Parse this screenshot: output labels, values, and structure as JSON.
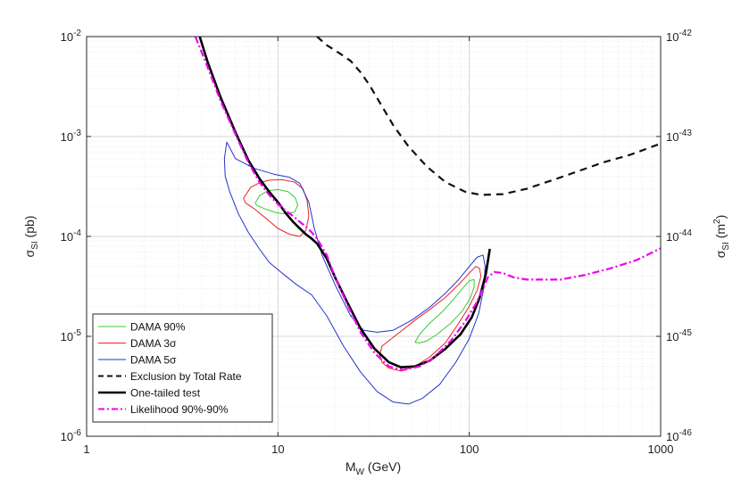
{
  "chart_data": {
    "type": "line",
    "xscale": "log",
    "yscale": "log",
    "xlim": [
      1,
      1000
    ],
    "ylim": [
      1e-06,
      0.01
    ],
    "y2lim": [
      1e-46,
      1e-42
    ],
    "xlabel": {
      "main": "M",
      "sub": "W",
      "rest": " (GeV)"
    },
    "ylabel": {
      "main": "σ",
      "sub": "SI",
      "rest": " (pb)"
    },
    "y2label": {
      "main": "σ",
      "sub": "SI",
      "rest": " (m",
      "sup": "2",
      "close": ")"
    },
    "xticks": [
      {
        "value": 1,
        "label": "1"
      },
      {
        "value": 10,
        "label": "10"
      },
      {
        "value": 100,
        "label": "100"
      },
      {
        "value": 1000,
        "label": "1000"
      }
    ],
    "yticks": [
      {
        "value": 0.01,
        "base": "10",
        "exp": "-2"
      },
      {
        "value": 0.001,
        "base": "10",
        "exp": "-3"
      },
      {
        "value": 0.0001,
        "base": "10",
        "exp": "-4"
      },
      {
        "value": 1e-05,
        "base": "10",
        "exp": "-5"
      },
      {
        "value": 1e-06,
        "base": "10",
        "exp": "-6"
      }
    ],
    "y2ticks": [
      {
        "value": 1e-42,
        "base": "10",
        "exp": "-42"
      },
      {
        "value": 1e-43,
        "base": "10",
        "exp": "-43"
      },
      {
        "value": 1e-44,
        "base": "10",
        "exp": "-44"
      },
      {
        "value": 1e-45,
        "base": "10",
        "exp": "-45"
      },
      {
        "value": 1e-46,
        "base": "10",
        "exp": "-46"
      }
    ],
    "grid": true,
    "legend_position": "bottom-left",
    "series": [
      {
        "name": "DAMA 90%",
        "style": "contour",
        "color": "#33cc33",
        "dash": "",
        "points": [
          [
            7.6,
            0.000215
          ],
          [
            8.0,
            0.000255
          ],
          [
            8.8,
            0.000285
          ],
          [
            10.0,
            0.000295
          ],
          [
            11.3,
            0.00028
          ],
          [
            12.3,
            0.000245
          ],
          [
            12.7,
            0.000205
          ],
          [
            12.2,
            0.000175
          ],
          [
            11.0,
            0.000168
          ],
          [
            9.8,
            0.000173
          ],
          [
            8.6,
            0.000188
          ],
          [
            7.8,
            0.000203
          ],
          [
            7.6,
            0.000215
          ]
        ]
      },
      {
        "name": "DAMA 90%",
        "style": "contour",
        "color": "#33cc33",
        "dash": "",
        "points": [
          [
            52,
            8.7e-06
          ],
          [
            55,
            1.05e-05
          ],
          [
            62,
            1.35e-05
          ],
          [
            72,
            1.75e-05
          ],
          [
            82,
            2.3e-05
          ],
          [
            92,
            3e-05
          ],
          [
            100,
            3.6e-05
          ],
          [
            106,
            3.7e-05
          ],
          [
            106,
            3.1e-05
          ],
          [
            101,
            2.4e-05
          ],
          [
            92,
            1.8e-05
          ],
          [
            80,
            1.35e-05
          ],
          [
            68,
            1.05e-05
          ],
          [
            60,
            9e-06
          ],
          [
            55,
            8.6e-06
          ],
          [
            52,
            8.7e-06
          ]
        ]
      },
      {
        "name": "DAMA 3σ",
        "style": "contour",
        "color": "#ee2222",
        "dash": "",
        "points": [
          [
            6.6,
            0.00024
          ],
          [
            7.2,
            0.00031
          ],
          [
            8.0,
            0.000345
          ],
          [
            9.0,
            0.000365
          ],
          [
            10.5,
            0.00037
          ],
          [
            12.2,
            0.00035
          ],
          [
            13.5,
            0.0003
          ],
          [
            14.2,
            0.00023
          ],
          [
            14.5,
            0.00016
          ],
          [
            14.0,
            0.000115
          ],
          [
            13.0,
            0.0001
          ],
          [
            11.5,
            0.000105
          ],
          [
            10.0,
            0.00012
          ],
          [
            8.8,
            0.000148
          ],
          [
            7.5,
            0.00019
          ],
          [
            6.8,
            0.000215
          ],
          [
            6.6,
            0.00024
          ]
        ]
      },
      {
        "name": "DAMA 3σ",
        "style": "contour",
        "color": "#ee2222",
        "dash": "",
        "points": [
          [
            34,
            6.5e-06
          ],
          [
            35,
            8e-06
          ],
          [
            42,
            1.05e-05
          ],
          [
            52,
            1.45e-05
          ],
          [
            62,
            1.85e-05
          ],
          [
            75,
            2.45e-05
          ],
          [
            88,
            3.3e-05
          ],
          [
            100,
            4.3e-05
          ],
          [
            108,
            5e-05
          ],
          [
            113,
            4.8e-05
          ],
          [
            115,
            4e-05
          ],
          [
            110,
            2.9e-05
          ],
          [
            100,
            2e-05
          ],
          [
            88,
            1.35e-05
          ],
          [
            75,
            8.6e-06
          ],
          [
            62,
            6.2e-06
          ],
          [
            52,
            5e-06
          ],
          [
            44,
            4.5e-06
          ],
          [
            38,
            4.8e-06
          ],
          [
            35,
            5.5e-06
          ],
          [
            34,
            6.5e-06
          ]
        ]
      },
      {
        "name": "DAMA 5σ",
        "style": "contour",
        "color": "#2233cc",
        "dash": "",
        "points": [
          [
            5.4,
            0.00088
          ],
          [
            6.0,
            0.0006
          ],
          [
            7.5,
            0.00048
          ],
          [
            9.5,
            0.00042
          ],
          [
            11.5,
            0.00039
          ],
          [
            13,
            0.00034
          ],
          [
            14.5,
            0.00022
          ],
          [
            15.5,
            0.00012
          ],
          [
            17,
            6.5e-05
          ],
          [
            20,
            3.2e-05
          ],
          [
            24,
            1.6e-05
          ],
          [
            28,
            1.15e-05
          ],
          [
            33,
            1.1e-05
          ],
          [
            40,
            1.15e-05
          ],
          [
            50,
            1.45e-05
          ],
          [
            62,
            1.95e-05
          ],
          [
            75,
            2.7e-05
          ],
          [
            88,
            3.7e-05
          ],
          [
            100,
            5e-05
          ],
          [
            110,
            6.2e-05
          ],
          [
            118,
            6.5e-05
          ],
          [
            121,
            5e-05
          ],
          [
            119,
            3e-05
          ],
          [
            112,
            1.7e-05
          ],
          [
            100,
            9.5e-06
          ],
          [
            85,
            5.5e-06
          ],
          [
            70,
            3.3e-06
          ],
          [
            57,
            2.4e-06
          ],
          [
            48,
            2.1e-06
          ],
          [
            40,
            2.2e-06
          ],
          [
            33,
            2.8e-06
          ],
          [
            27,
            4.4e-06
          ],
          [
            22,
            8e-06
          ],
          [
            18,
            1.6e-05
          ],
          [
            15,
            2.6e-05
          ],
          [
            12.5,
            3.3e-05
          ],
          [
            10.5,
            4.3e-05
          ],
          [
            9.0,
            5.5e-05
          ],
          [
            8.0,
            7.5e-05
          ],
          [
            7.0,
            0.00011
          ],
          [
            6.2,
            0.00017
          ],
          [
            5.6,
            0.00028
          ],
          [
            5.3,
            0.0004
          ],
          [
            5.25,
            0.0006
          ],
          [
            5.4,
            0.00088
          ]
        ]
      },
      {
        "name": "Exclusion by Total Rate",
        "style": "line",
        "color": "#111111",
        "dash": "8,6",
        "points": [
          [
            16,
            0.01
          ],
          [
            18,
            0.0082
          ],
          [
            21,
            0.0068
          ],
          [
            24,
            0.0057
          ],
          [
            27,
            0.0044
          ],
          [
            30,
            0.0033
          ],
          [
            34,
            0.0022
          ],
          [
            40,
            0.0013
          ],
          [
            48,
            0.0008
          ],
          [
            60,
            0.0005
          ],
          [
            75,
            0.00035
          ],
          [
            95,
            0.00028
          ],
          [
            115,
            0.00026
          ],
          [
            150,
            0.000265
          ],
          [
            200,
            0.0003
          ],
          [
            300,
            0.00039
          ],
          [
            500,
            0.00055
          ],
          [
            700,
            0.00066
          ],
          [
            1000,
            0.00085
          ]
        ]
      },
      {
        "name": "One-tailed test",
        "style": "line",
        "color": "#000000",
        "dash": "",
        "points": [
          [
            3.9,
            0.01
          ],
          [
            4.3,
            0.0055
          ],
          [
            5.0,
            0.0025
          ],
          [
            6.0,
            0.0011
          ],
          [
            7.0,
            0.00058
          ],
          [
            8.0,
            0.00038
          ],
          [
            9.0,
            0.00028
          ],
          [
            10.0,
            0.00022
          ],
          [
            11.0,
            0.00017
          ],
          [
            12.0,
            0.00014
          ],
          [
            13.0,
            0.00012
          ],
          [
            14.0,
            0.000105
          ],
          [
            15.0,
            9.5e-05
          ],
          [
            16.0,
            8.5e-05
          ],
          [
            18.0,
            6e-05
          ],
          [
            20.0,
            3.8e-05
          ],
          [
            23.0,
            2.2e-05
          ],
          [
            27.0,
            1.2e-05
          ],
          [
            32.0,
            7.5e-06
          ],
          [
            38.0,
            5.5e-06
          ],
          [
            44.0,
            4.9e-06
          ],
          [
            52.0,
            5e-06
          ],
          [
            62.0,
            5.7e-06
          ],
          [
            75.0,
            7.5e-06
          ],
          [
            90.0,
            1.05e-05
          ],
          [
            103.0,
            1.55e-05
          ],
          [
            113.0,
            2.4e-05
          ],
          [
            122.0,
            4.2e-05
          ],
          [
            128.0,
            7.5e-05
          ]
        ]
      },
      {
        "name": "Likelihood 90%-90%",
        "style": "line",
        "color": "#ee00ee",
        "dash": "8,3,2,3",
        "points": [
          [
            3.7,
            0.01
          ],
          [
            4.2,
            0.0055
          ],
          [
            5.0,
            0.0023
          ],
          [
            6.0,
            0.00105
          ],
          [
            7.0,
            0.00055
          ],
          [
            8.0,
            0.00035
          ],
          [
            9.0,
            0.00026
          ],
          [
            10.0,
            0.00021
          ],
          [
            11.0,
            0.00018
          ],
          [
            12.0,
            0.00016
          ],
          [
            13.0,
            0.00014
          ],
          [
            14.0,
            0.000125
          ],
          [
            15.0,
            0.00011
          ],
          [
            16.0,
            9.5e-05
          ],
          [
            18.0,
            6.5e-05
          ],
          [
            20.0,
            3.8e-05
          ],
          [
            23.0,
            2.1e-05
          ],
          [
            27.0,
            1.1e-05
          ],
          [
            32.0,
            6.8e-06
          ],
          [
            38.0,
            5e-06
          ],
          [
            45.0,
            4.6e-06
          ],
          [
            55.0,
            5e-06
          ],
          [
            65.0,
            6.1e-06
          ],
          [
            80.0,
            9e-06
          ],
          [
            95.0,
            1.4e-05
          ],
          [
            108.0,
            2.1e-05
          ],
          [
            118.0,
            3e-05
          ],
          [
            125.0,
            3.9e-05
          ],
          [
            135.0,
            4.4e-05
          ],
          [
            150.0,
            4.3e-05
          ],
          [
            170.0,
            3.9e-05
          ],
          [
            200.0,
            3.7e-05
          ],
          [
            300.0,
            3.7e-05
          ],
          [
            400.0,
            4.1e-05
          ],
          [
            550.0,
            4.8e-05
          ],
          [
            750.0,
            5.8e-05
          ],
          [
            1000.0,
            7.6e-05
          ]
        ]
      }
    ],
    "legend": [
      {
        "label": "DAMA 90%",
        "color": "#33cc33",
        "width": 1,
        "dash": ""
      },
      {
        "label": "DAMA 3σ",
        "color": "#ee2222",
        "width": 1,
        "dash": ""
      },
      {
        "label": "DAMA 5σ",
        "color": "#2233cc",
        "width": 1,
        "dash": ""
      },
      {
        "label": "Exclusion by Total Rate",
        "color": "#111111",
        "width": 2,
        "dash": "6,4"
      },
      {
        "label": "One-tailed test",
        "color": "#000000",
        "width": 2.4,
        "dash": ""
      },
      {
        "label": "Likelihood 90%-90%",
        "color": "#ee00ee",
        "width": 2,
        "dash": "7,3,2,3"
      }
    ]
  }
}
